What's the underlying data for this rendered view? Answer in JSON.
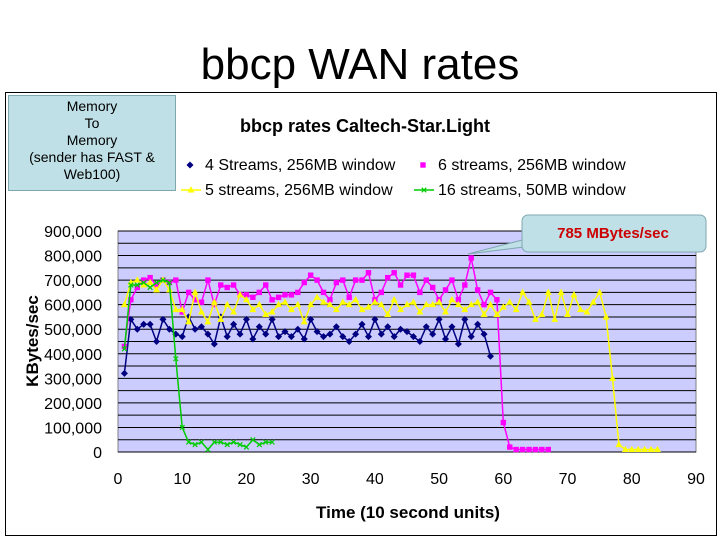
{
  "slide": {
    "title": "bbcp WAN rates",
    "note_lines": [
      "Memory",
      "To",
      "Memory",
      "(sender has FAST &",
      "Web100)"
    ]
  },
  "chart_data": {
    "type": "line",
    "title": "bbcp rates Caltech-Star.Light",
    "xlabel": "Time (10 second units)",
    "ylabel": "KBytes/sec",
    "xlim": [
      0,
      90
    ],
    "ylim": [
      0,
      900000
    ],
    "x_ticks": [
      "0",
      "10",
      "20",
      "30",
      "40",
      "50",
      "60",
      "70",
      "80",
      "90"
    ],
    "y_ticks": [
      "0",
      "100,000",
      "200,000",
      "300,000",
      "400,000",
      "500,000",
      "600,000",
      "700,000",
      "800,000",
      "900,000"
    ],
    "grid": "horizontal",
    "plot_background": "#ccccff",
    "legend_placement": "top",
    "annotation": "785 MBytes/sec",
    "series": [
      {
        "name": "4 Streams, 256MB window",
        "color": "#000080",
        "marker": "diamond",
        "x": [
          1,
          2,
          3,
          4,
          5,
          6,
          7,
          8,
          9,
          10,
          11,
          12,
          13,
          14,
          15,
          16,
          17,
          18,
          19,
          20,
          21,
          22,
          23,
          24,
          25,
          26,
          27,
          28,
          29,
          30,
          31,
          32,
          33,
          34,
          35,
          36,
          37,
          38,
          39,
          40,
          41,
          42,
          43,
          44,
          45,
          46,
          47,
          48,
          49,
          50,
          51,
          52,
          53,
          54,
          55,
          56,
          57,
          58
        ],
        "y": [
          320000,
          540000,
          500000,
          520000,
          520000,
          450000,
          540000,
          500000,
          480000,
          470000,
          550000,
          500000,
          510000,
          480000,
          440000,
          550000,
          470000,
          520000,
          480000,
          540000,
          460000,
          510000,
          480000,
          540000,
          470000,
          490000,
          470000,
          500000,
          460000,
          540000,
          490000,
          470000,
          480000,
          510000,
          470000,
          450000,
          480000,
          520000,
          470000,
          540000,
          480000,
          510000,
          470000,
          500000,
          490000,
          470000,
          450000,
          510000,
          480000,
          540000,
          460000,
          510000,
          440000,
          540000,
          470000,
          520000,
          480000,
          390000
        ]
      },
      {
        "name": "6 streams, 256MB window",
        "color": "#ff00ff",
        "marker": "square",
        "x": [
          1,
          2,
          3,
          4,
          5,
          6,
          7,
          8,
          9,
          10,
          11,
          12,
          13,
          14,
          15,
          16,
          17,
          18,
          19,
          20,
          21,
          22,
          23,
          24,
          25,
          26,
          27,
          28,
          29,
          30,
          31,
          32,
          33,
          34,
          35,
          36,
          37,
          38,
          39,
          40,
          41,
          42,
          43,
          44,
          45,
          46,
          47,
          48,
          49,
          50,
          51,
          52,
          53,
          54,
          55,
          56,
          57,
          58,
          59,
          60,
          61,
          62,
          63,
          64,
          65,
          66,
          67
        ],
        "y": [
          430000,
          620000,
          670000,
          700000,
          710000,
          680000,
          700000,
          690000,
          700000,
          570000,
          650000,
          620000,
          610000,
          700000,
          600000,
          680000,
          670000,
          680000,
          640000,
          640000,
          630000,
          650000,
          680000,
          620000,
          630000,
          640000,
          640000,
          650000,
          690000,
          720000,
          700000,
          650000,
          620000,
          690000,
          700000,
          630000,
          700000,
          700000,
          730000,
          620000,
          650000,
          710000,
          730000,
          680000,
          720000,
          720000,
          650000,
          700000,
          670000,
          620000,
          660000,
          700000,
          620000,
          680000,
          790000,
          660000,
          600000,
          650000,
          620000,
          120000,
          20000,
          10000,
          10000,
          10000,
          10000,
          10000,
          10000
        ]
      },
      {
        "name": "5 streams, 256MB window",
        "color": "#ffff00",
        "marker": "triangle",
        "x": [
          1,
          2,
          3,
          4,
          5,
          6,
          7,
          8,
          9,
          10,
          11,
          12,
          13,
          14,
          15,
          16,
          17,
          18,
          19,
          20,
          21,
          22,
          23,
          24,
          25,
          26,
          27,
          28,
          29,
          30,
          31,
          32,
          33,
          34,
          35,
          36,
          37,
          38,
          39,
          40,
          41,
          42,
          43,
          44,
          45,
          46,
          47,
          48,
          49,
          50,
          51,
          52,
          53,
          54,
          55,
          56,
          57,
          58,
          59,
          60,
          61,
          62,
          63,
          64,
          65,
          66,
          67,
          68,
          69,
          70,
          71,
          72,
          73,
          74,
          75,
          76,
          77,
          78,
          79,
          80,
          81,
          82,
          83,
          84
        ],
        "y": [
          600000,
          690000,
          700000,
          680000,
          690000,
          660000,
          700000,
          660000,
          580000,
          580000,
          530000,
          650000,
          570000,
          530000,
          610000,
          540000,
          600000,
          570000,
          640000,
          620000,
          580000,
          600000,
          560000,
          570000,
          600000,
          610000,
          580000,
          600000,
          530000,
          600000,
          630000,
          610000,
          600000,
          580000,
          610000,
          600000,
          620000,
          580000,
          590000,
          610000,
          600000,
          560000,
          620000,
          580000,
          600000,
          610000,
          570000,
          600000,
          600000,
          610000,
          570000,
          620000,
          600000,
          580000,
          600000,
          610000,
          560000,
          600000,
          560000,
          590000,
          610000,
          580000,
          650000,
          610000,
          540000,
          560000,
          650000,
          540000,
          650000,
          560000,
          640000,
          580000,
          570000,
          610000,
          650000,
          550000,
          300000,
          30000,
          10000,
          10000,
          10000,
          10000,
          10000,
          10000
        ]
      },
      {
        "name": "16 streams, 50MB window",
        "color": "#00cc00",
        "marker": "x",
        "x": [
          1,
          2,
          3,
          4,
          5,
          6,
          7,
          8,
          9,
          10,
          11,
          12,
          13,
          14,
          15,
          16,
          17,
          18,
          19,
          20,
          21,
          22,
          23,
          24
        ],
        "y": [
          420000,
          680000,
          680000,
          690000,
          670000,
          690000,
          700000,
          690000,
          380000,
          100000,
          40000,
          30000,
          40000,
          10000,
          40000,
          40000,
          30000,
          40000,
          30000,
          20000,
          50000,
          30000,
          40000,
          40000
        ]
      }
    ]
  }
}
